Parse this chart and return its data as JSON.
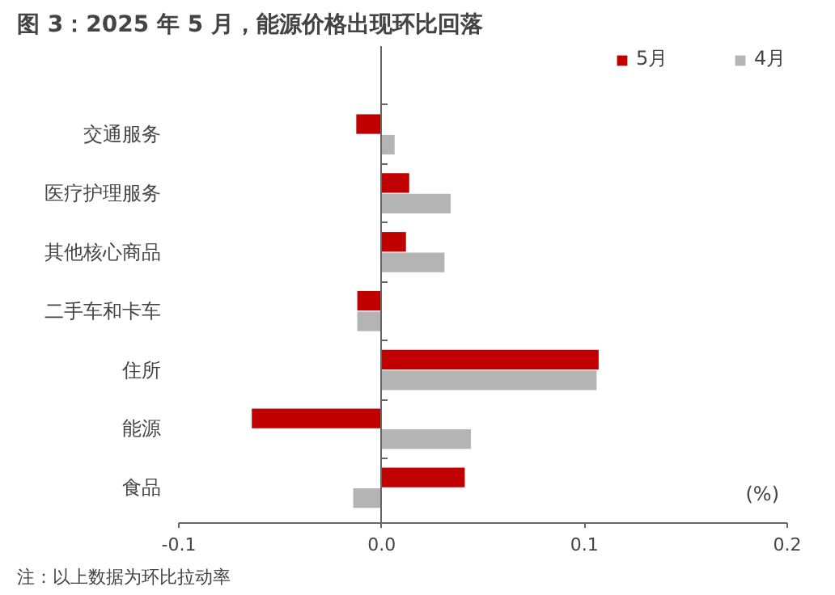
{
  "chart_data": {
    "type": "bar",
    "orientation": "horizontal",
    "title": "图 3：2025 年 5 月，能源价格出现环比回落",
    "categories": [
      "交通服务",
      "医疗护理服务",
      "其他核心商品",
      "二手车和卡车",
      "住所",
      "能源",
      "食品"
    ],
    "series": [
      {
        "name": "5月",
        "color": "#c00000",
        "values": [
          -0.0125,
          0.0136,
          0.012,
          -0.012,
          0.107,
          -0.064,
          0.041
        ]
      },
      {
        "name": "4月",
        "color": "#b4b4b4",
        "values": [
          0.0064,
          0.034,
          0.031,
          -0.012,
          0.106,
          0.044,
          -0.014
        ]
      }
    ],
    "xlim": [
      -0.1,
      0.2
    ],
    "xticks": [
      {
        "value": -0.1,
        "label": "-0.1"
      },
      {
        "value": 0,
        "label": "0.0"
      },
      {
        "value": 0.1,
        "label": "0.1"
      },
      {
        "value": 0.2,
        "label": "0.2"
      }
    ],
    "legend": "top right",
    "annotations": [
      "(%)",
      "注：以上数据为环比拉动率"
    ]
  }
}
